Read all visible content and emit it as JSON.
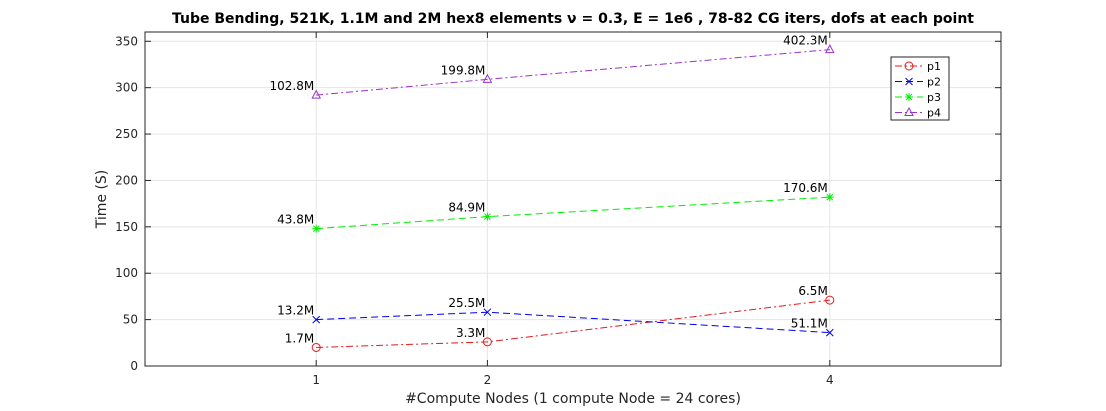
{
  "chart_data": {
    "type": "line",
    "title": "Tube Bending, 521K, 1.1M and 2M hex8 elements ν = 0.3, E = 1e6 , 78-82 CG iters, dofs at each point",
    "xlabel": "#Compute Nodes (1 compute Node = 24 cores)",
    "ylabel": "Time (S)",
    "x": [
      1,
      2,
      4
    ],
    "x_tick_labels": [
      "1",
      "2",
      "4"
    ],
    "xlim": [
      0,
      5
    ],
    "ylim": [
      0,
      360
    ],
    "y_ticks": [
      0,
      50,
      100,
      150,
      200,
      250,
      300,
      350
    ],
    "y_tick_labels": [
      "0",
      "50",
      "100",
      "150",
      "200",
      "250",
      "300",
      "350"
    ],
    "grid": true,
    "legend_position": "top-right",
    "series": [
      {
        "name": "p1",
        "values": [
          20,
          26,
          71
        ],
        "color": "#e41a1c",
        "dash": "dashdot",
        "marker": "circle",
        "labels": [
          "1.7M",
          "3.3M",
          "6.5M"
        ]
      },
      {
        "name": "p2",
        "values": [
          50,
          58,
          36
        ],
        "color": "#0000ee",
        "dash": "dashed",
        "marker": "x",
        "labels": [
          "13.2M",
          "25.5M",
          "51.1M"
        ]
      },
      {
        "name": "p3",
        "values": [
          148,
          161,
          182
        ],
        "color": "#00ee00",
        "dash": "dashed",
        "marker": "star",
        "labels": [
          "43.8M",
          "84.9M",
          "170.6M"
        ]
      },
      {
        "name": "p4",
        "values": [
          292,
          309,
          341
        ],
        "color": "#9933cc",
        "dash": "dashdot",
        "marker": "triangle",
        "labels": [
          "102.8M",
          "199.8M",
          "402.3M"
        ]
      }
    ]
  }
}
